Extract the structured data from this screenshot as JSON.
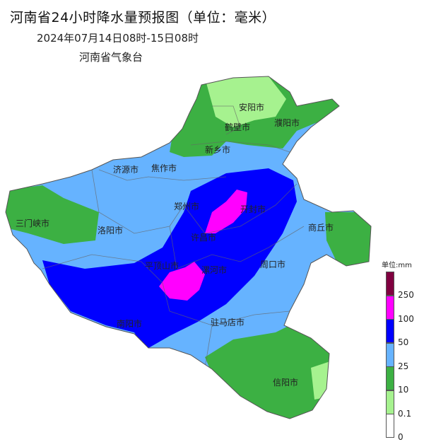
{
  "title": "河南省24小时降水量预报图（单位：毫米）",
  "period": "2024年07月14日08时-15日08时",
  "issuer": "河南省气象台",
  "cities": [
    {
      "name": "安阳市"
    },
    {
      "name": "鹤壁市"
    },
    {
      "name": "濮阳市"
    },
    {
      "name": "新乡市"
    },
    {
      "name": "济源市"
    },
    {
      "name": "焦作市"
    },
    {
      "name": "三门峡市"
    },
    {
      "name": "洛阳市"
    },
    {
      "name": "郑州市"
    },
    {
      "name": "开封市"
    },
    {
      "name": "商丘市"
    },
    {
      "name": "许昌市"
    },
    {
      "name": "平顶山市"
    },
    {
      "name": "漯河市"
    },
    {
      "name": "周口市"
    },
    {
      "name": "南阳市"
    },
    {
      "name": "驻马店市"
    },
    {
      "name": "信阳市"
    }
  ],
  "legend": {
    "title": "单位:mm",
    "levels": [
      {
        "label": "250",
        "color": "#800040"
      },
      {
        "label": "100",
        "color": "#ff00ff"
      },
      {
        "label": "50",
        "color": "#0000ff"
      },
      {
        "label": "25",
        "color": "#66b3ff"
      },
      {
        "label": "10",
        "color": "#3cb043"
      },
      {
        "label": "0.1",
        "color": "#a6f28f"
      },
      {
        "label": "0",
        "color": "#ffffff"
      }
    ]
  }
}
